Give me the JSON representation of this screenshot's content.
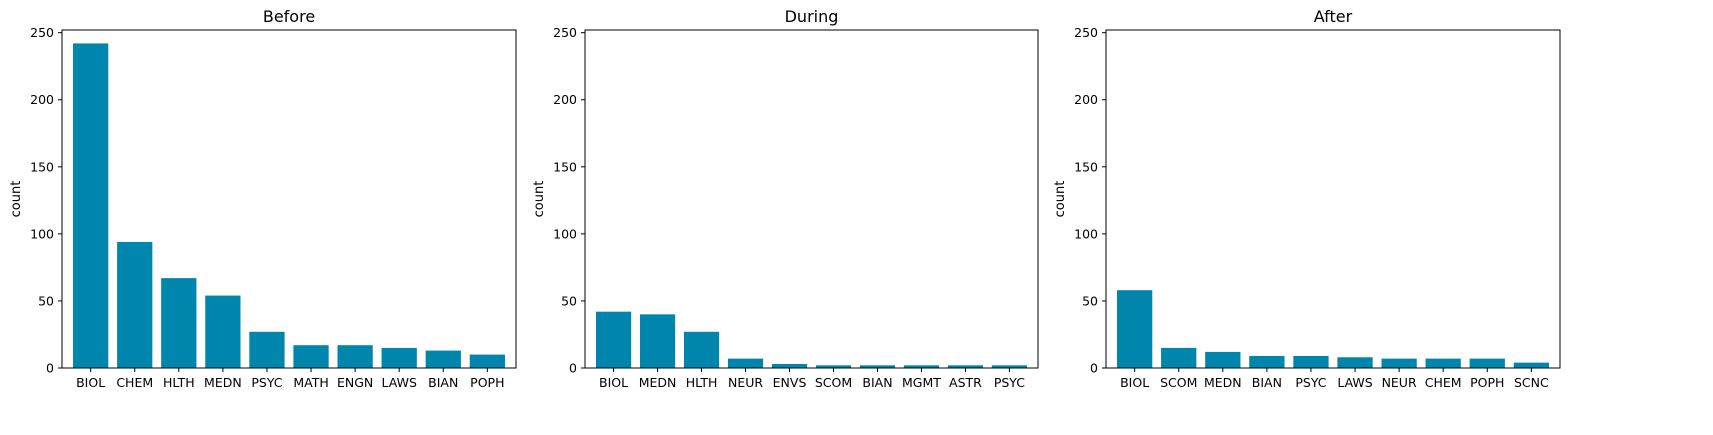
{
  "chart_data": [
    {
      "type": "bar",
      "title": "Before",
      "xlabel": "",
      "ylabel": "count",
      "ylim": [
        0,
        252
      ],
      "yticks": [
        0,
        50,
        100,
        150,
        200,
        250
      ],
      "color": "#0086ad",
      "categories": [
        "BIOL",
        "CHEM",
        "HLTH",
        "MEDN",
        "PSYC",
        "MATH",
        "ENGN",
        "LAWS",
        "BIAN",
        "POPH"
      ],
      "values": [
        242,
        94,
        67,
        54,
        27,
        17,
        17,
        15,
        13,
        10
      ]
    },
    {
      "type": "bar",
      "title": "During",
      "xlabel": "",
      "ylabel": "count",
      "ylim": [
        0,
        252
      ],
      "yticks": [
        0,
        50,
        100,
        150,
        200,
        250
      ],
      "color": "#0086ad",
      "categories": [
        "BIOL",
        "MEDN",
        "HLTH",
        "NEUR",
        "ENVS",
        "SCOM",
        "BIAN",
        "MGMT",
        "ASTR",
        "PSYC"
      ],
      "values": [
        42,
        40,
        27,
        7,
        3,
        2,
        2,
        2,
        2,
        2
      ]
    },
    {
      "type": "bar",
      "title": "After",
      "xlabel": "",
      "ylabel": "count",
      "ylim": [
        0,
        252
      ],
      "yticks": [
        0,
        50,
        100,
        150,
        200,
        250
      ],
      "color": "#0086ad",
      "categories": [
        "BIOL",
        "SCOM",
        "MEDN",
        "BIAN",
        "PSYC",
        "LAWS",
        "NEUR",
        "CHEM",
        "POPH",
        "SCNC"
      ],
      "values": [
        58,
        15,
        12,
        9,
        9,
        8,
        7,
        7,
        7,
        4
      ]
    }
  ]
}
